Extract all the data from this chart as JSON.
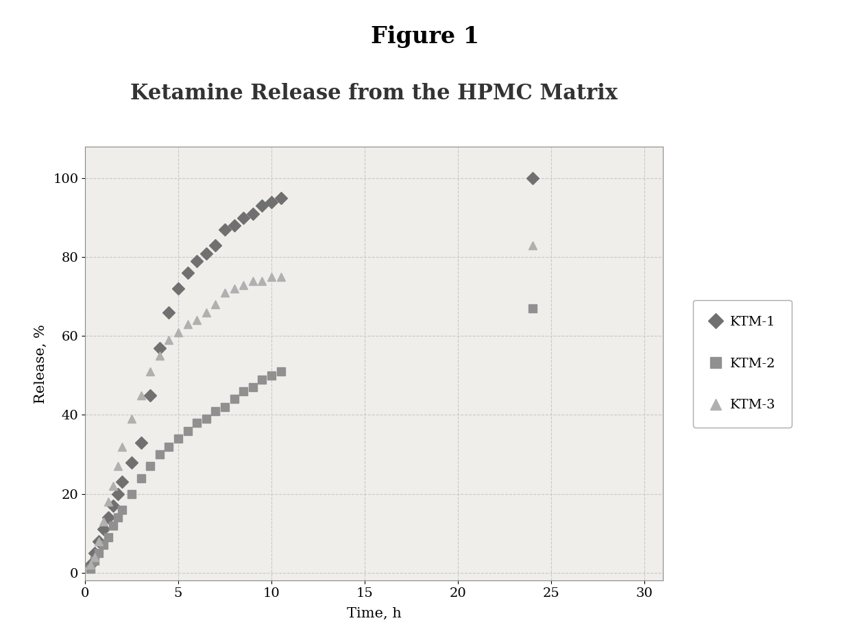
{
  "title_fig": "Figure 1",
  "title_chart": "Ketamine Release from the HPMC Matrix",
  "xlabel": "Time, h",
  "ylabel": "Release, %",
  "xlim": [
    0,
    31
  ],
  "ylim": [
    -2,
    108
  ],
  "xticks": [
    0,
    5,
    10,
    15,
    20,
    25,
    30
  ],
  "yticks": [
    0,
    20,
    40,
    60,
    80,
    100
  ],
  "outer_bg": "#ffffff",
  "plot_bg": "#f0eeea",
  "KTM1": {
    "label": "KTM-1",
    "color": "#707070",
    "x": [
      0.3,
      0.5,
      0.75,
      1.0,
      1.25,
      1.5,
      1.75,
      2.0,
      2.5,
      3.0,
      3.5,
      4.0,
      4.5,
      5.0,
      5.5,
      6.0,
      6.5,
      7.0,
      7.5,
      8.0,
      8.5,
      9.0,
      9.5,
      10.0,
      10.5,
      24.0
    ],
    "y": [
      2,
      5,
      8,
      11,
      14,
      17,
      20,
      23,
      28,
      33,
      45,
      57,
      66,
      72,
      76,
      79,
      81,
      83,
      87,
      88,
      90,
      91,
      93,
      94,
      95,
      100
    ]
  },
  "KTM2": {
    "label": "KTM-2",
    "color": "#909090",
    "x": [
      0.3,
      0.5,
      0.75,
      1.0,
      1.25,
      1.5,
      1.75,
      2.0,
      2.5,
      3.0,
      3.5,
      4.0,
      4.5,
      5.0,
      5.5,
      6.0,
      6.5,
      7.0,
      7.5,
      8.0,
      8.5,
      9.0,
      9.5,
      10.0,
      10.5,
      24.0
    ],
    "y": [
      1,
      3,
      5,
      7,
      9,
      12,
      14,
      16,
      20,
      24,
      27,
      30,
      32,
      34,
      36,
      38,
      39,
      41,
      42,
      44,
      46,
      47,
      49,
      50,
      51,
      67
    ]
  },
  "KTM3": {
    "label": "KTM-3",
    "color": "#b0b0b0",
    "x": [
      0.3,
      0.5,
      0.75,
      1.0,
      1.25,
      1.5,
      1.75,
      2.0,
      2.5,
      3.0,
      3.5,
      4.0,
      4.5,
      5.0,
      5.5,
      6.0,
      6.5,
      7.0,
      7.5,
      8.0,
      8.5,
      9.0,
      9.5,
      10.0,
      10.5,
      24.0
    ],
    "y": [
      2,
      4,
      8,
      13,
      18,
      22,
      27,
      32,
      39,
      45,
      51,
      55,
      59,
      61,
      63,
      64,
      66,
      68,
      71,
      72,
      73,
      74,
      74,
      75,
      75,
      83
    ]
  },
  "grid_color": "#c8c8c8",
  "title_chart_fontsize": 22,
  "title_fig_fontsize": 24,
  "label_fontsize": 15,
  "tick_fontsize": 14,
  "legend_fontsize": 14,
  "marker_size": 9
}
